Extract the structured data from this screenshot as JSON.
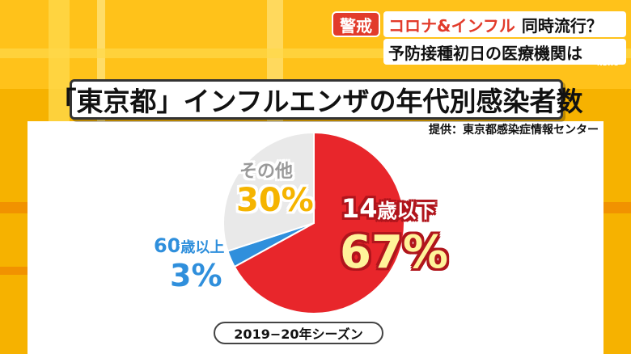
{
  "header": {
    "alert_badge": "警戒",
    "headline_part1": "コロナ&インフル",
    "headline_part2": "同時流行？",
    "headline_line2": "予防接種初日の医療機関は",
    "logo_mark": "NEWS"
  },
  "colors": {
    "background": "#f6b200",
    "slice_under14": "#e8262b",
    "slice_over60": "#2f8fdc",
    "slice_other": "#e9e9e9"
  },
  "chart_data": {
    "type": "pie",
    "title": "「東京都」インフルエンザの年代別感染者数",
    "source": "提供：東京都感染症情報センター",
    "season": "2019−20年シーズン",
    "slices": [
      {
        "label_num": "14",
        "label_unit": "歳以下",
        "value": 67,
        "value_text": "67%",
        "color": "#e8262b"
      },
      {
        "label_num": "60",
        "label_unit": "歳以上",
        "value": 3,
        "value_text": "3%",
        "color": "#2f8fdc"
      },
      {
        "label_num": "",
        "label_unit": "その他",
        "value": 30,
        "value_text": "30%",
        "color": "#e9e9e9"
      }
    ]
  }
}
